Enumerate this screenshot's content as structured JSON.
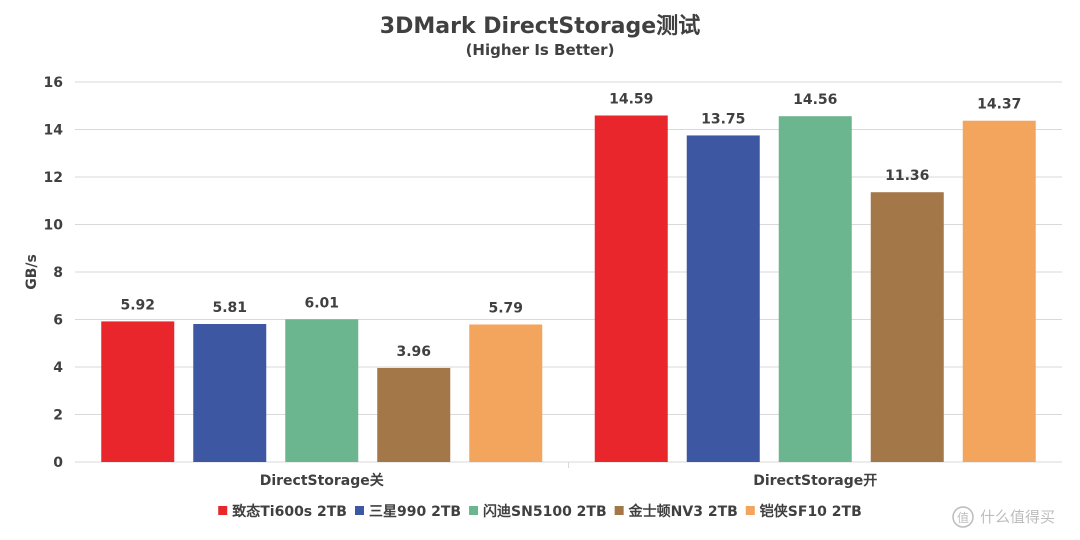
{
  "chart_data": {
    "type": "bar",
    "title": "3DMark DirectStorage测试",
    "subtitle": "(Higher Is Better)",
    "xlabel": "",
    "ylabel": "GB/s",
    "ylim": [
      0,
      16
    ],
    "yticks": [
      0,
      2,
      4,
      6,
      8,
      10,
      12,
      14,
      16
    ],
    "grid": true,
    "legend_position": "bottom",
    "categories": [
      "DirectStorage关",
      "DirectStorage开"
    ],
    "series": [
      {
        "name": "致态Ti600s 2TB",
        "color": "#e8262b",
        "values": [
          5.92,
          14.59
        ]
      },
      {
        "name": "三星990 2TB",
        "color": "#3d57a3",
        "values": [
          5.81,
          13.75
        ]
      },
      {
        "name": "闪迪SN5100 2TB",
        "color": "#6bb68e",
        "values": [
          6.01,
          14.56
        ]
      },
      {
        "name": "金士顿NV3 2TB",
        "color": "#a47749",
        "values": [
          3.96,
          11.36
        ]
      },
      {
        "name": "铠侠SF10 2TB",
        "color": "#f4a55d",
        "values": [
          5.79,
          14.37
        ]
      }
    ]
  },
  "watermark": {
    "icon": "值-circle-icon",
    "text": "什么值得买"
  }
}
